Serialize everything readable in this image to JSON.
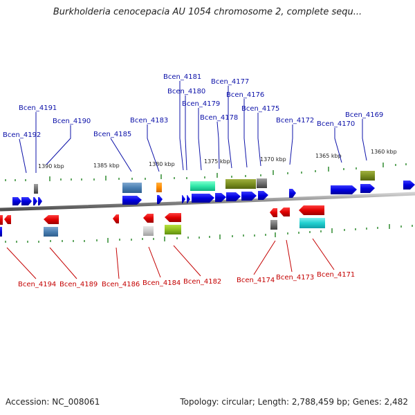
{
  "title": "Burkholderia cenocepacia AU 1054 chromosome 2, complete sequ...",
  "footer": {
    "accession": "Accession: NC_008061",
    "summary": "Topology: circular; Length: 2,788,459 bp; Genes: 2,482"
  },
  "colors": {
    "forward_label": "#0b10a8",
    "reverse_label": "#c40000",
    "backbone": "#8a8a8a",
    "tick": "#2f8a2f"
  },
  "kbp_labels": [
    "1390 kbp",
    "1385 kbp",
    "1380 kbp",
    "1375 kbp",
    "1370 kbp",
    "1365 kbp",
    "1360 kbp"
  ],
  "forward_genes": [
    "Bcen_4192",
    "Bcen_4191",
    "Bcen_4190",
    "Bcen_4185",
    "Bcen_4183",
    "Bcen_4181",
    "Bcen_4180",
    "Bcen_4179",
    "Bcen_4178",
    "Bcen_4177",
    "Bcen_4176",
    "Bcen_4175",
    "Bcen_4172",
    "Bcen_4170",
    "Bcen_4169"
  ],
  "reverse_genes": [
    "Bcen_4194",
    "Bcen_4189",
    "Bcen_4186",
    "Bcen_4184",
    "Bcen_4182",
    "Bcen_4174",
    "Bcen_4173",
    "Bcen_4171"
  ]
}
